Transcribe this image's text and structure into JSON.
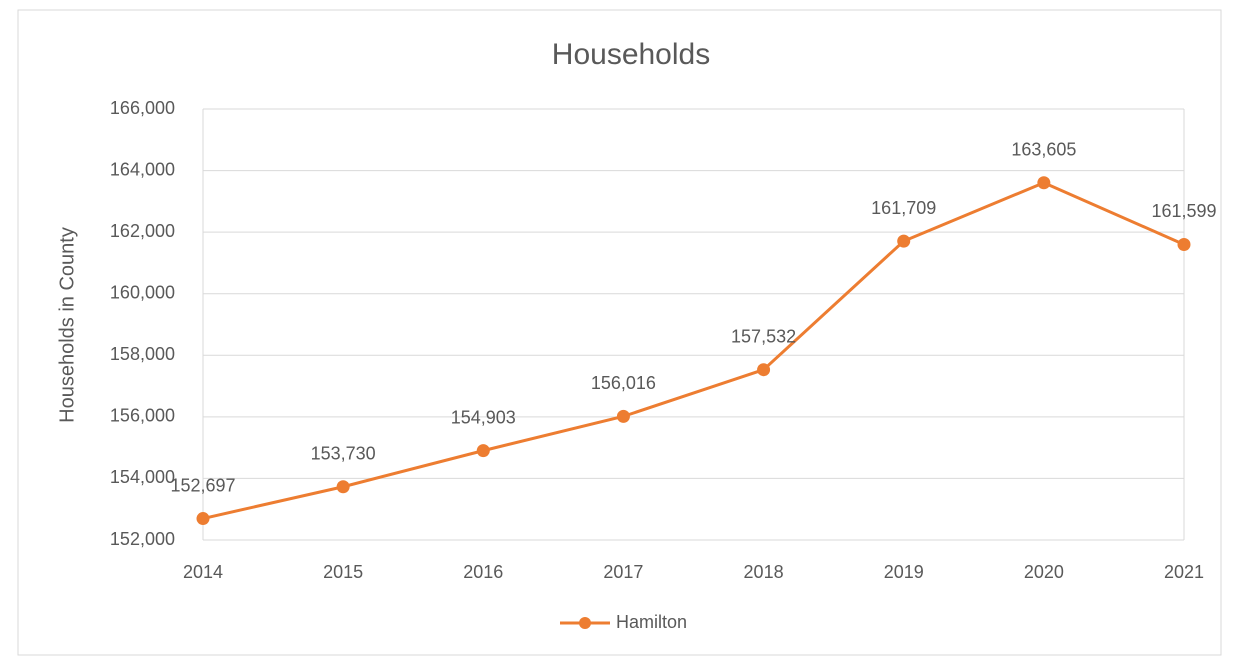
{
  "chart_data": {
    "type": "line",
    "title": "Households",
    "y_label": "Households in County",
    "categories": [
      "2014",
      "2015",
      "2016",
      "2017",
      "2018",
      "2019",
      "2020",
      "2021"
    ],
    "series": [
      {
        "name": "Hamilton",
        "color": "#ed7d31",
        "values": [
          152697,
          153730,
          154903,
          156016,
          157532,
          161709,
          163605,
          161599
        ],
        "value_labels": [
          "152,697",
          "153,730",
          "154,903",
          "156,016",
          "157,532",
          "161,709",
          "163,605",
          "161,599"
        ]
      }
    ],
    "ylim": [
      152000,
      166000
    ],
    "yticks": [
      {
        "value": 152000,
        "label": "152,000"
      },
      {
        "value": 154000,
        "label": "154,000"
      },
      {
        "value": 156000,
        "label": "156,000"
      },
      {
        "value": 158000,
        "label": "158,000"
      },
      {
        "value": 160000,
        "label": "160,000"
      },
      {
        "value": 162000,
        "label": "162,000"
      },
      {
        "value": 164000,
        "label": "164,000"
      },
      {
        "value": 166000,
        "label": "166,000"
      }
    ],
    "grid": true,
    "legend": "bottom"
  }
}
